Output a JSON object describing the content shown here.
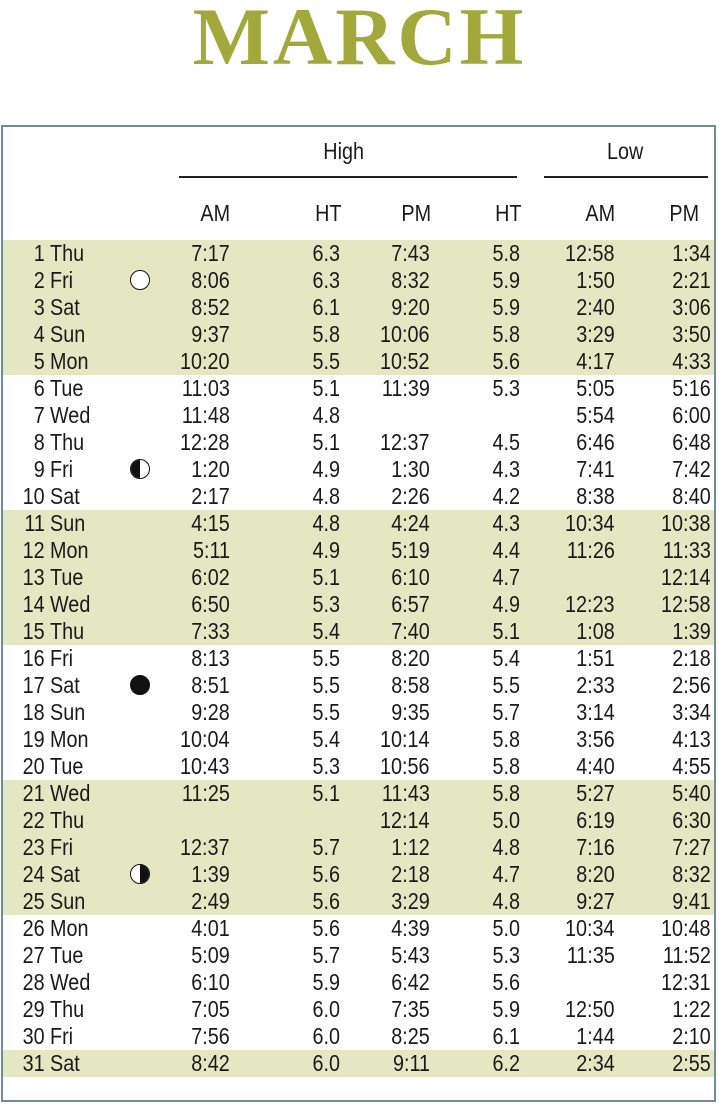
{
  "page": {
    "title": "MARCH",
    "accent_color": "#a2a93a",
    "shade_color": "#e5e6c2",
    "border_color": "#6f8d96"
  },
  "headers": {
    "high": "High",
    "low": "Low",
    "am": "AM",
    "ht": "HT",
    "pm": "PM"
  },
  "rows": [
    {
      "day": "1",
      "dow": "Thu",
      "moon": "",
      "high_am": "7:17",
      "ht_am": "6.3",
      "high_pm": "7:43",
      "ht_pm": "5.8",
      "low_am": "12:58",
      "low_pm": "1:34"
    },
    {
      "day": "2",
      "dow": "Fri",
      "moon": "full-moon",
      "high_am": "8:06",
      "ht_am": "6.3",
      "high_pm": "8:32",
      "ht_pm": "5.9",
      "low_am": "1:50",
      "low_pm": "2:21"
    },
    {
      "day": "3",
      "dow": "Sat",
      "moon": "",
      "high_am": "8:52",
      "ht_am": "6.1",
      "high_pm": "9:20",
      "ht_pm": "5.9",
      "low_am": "2:40",
      "low_pm": "3:06"
    },
    {
      "day": "4",
      "dow": "Sun",
      "moon": "",
      "high_am": "9:37",
      "ht_am": "5.8",
      "high_pm": "10:06",
      "ht_pm": "5.8",
      "low_am": "3:29",
      "low_pm": "3:50"
    },
    {
      "day": "5",
      "dow": "Mon",
      "moon": "",
      "high_am": "10:20",
      "ht_am": "5.5",
      "high_pm": "10:52",
      "ht_pm": "5.6",
      "low_am": "4:17",
      "low_pm": "4:33"
    },
    {
      "day": "6",
      "dow": "Tue",
      "moon": "",
      "high_am": "11:03",
      "ht_am": "5.1",
      "high_pm": "11:39",
      "ht_pm": "5.3",
      "low_am": "5:05",
      "low_pm": "5:16"
    },
    {
      "day": "7",
      "dow": "Wed",
      "moon": "",
      "high_am": "11:48",
      "ht_am": "4.8",
      "high_pm": "",
      "ht_pm": "",
      "low_am": "5:54",
      "low_pm": "6:00"
    },
    {
      "day": "8",
      "dow": "Thu",
      "moon": "",
      "high_am": "12:28",
      "ht_am": "5.1",
      "high_pm": "12:37",
      "ht_pm": "4.5",
      "low_am": "6:46",
      "low_pm": "6:48"
    },
    {
      "day": "9",
      "dow": "Fri",
      "moon": "last-quarter-moon",
      "high_am": "1:20",
      "ht_am": "4.9",
      "high_pm": "1:30",
      "ht_pm": "4.3",
      "low_am": "7:41",
      "low_pm": "7:42"
    },
    {
      "day": "10",
      "dow": "Sat",
      "moon": "",
      "high_am": "2:17",
      "ht_am": "4.8",
      "high_pm": "2:26",
      "ht_pm": "4.2",
      "low_am": "8:38",
      "low_pm": "8:40"
    },
    {
      "day": "11",
      "dow": "Sun",
      "moon": "",
      "high_am": "4:15",
      "ht_am": "4.8",
      "high_pm": "4:24",
      "ht_pm": "4.3",
      "low_am": "10:34",
      "low_pm": "10:38"
    },
    {
      "day": "12",
      "dow": "Mon",
      "moon": "",
      "high_am": "5:11",
      "ht_am": "4.9",
      "high_pm": "5:19",
      "ht_pm": "4.4",
      "low_am": "11:26",
      "low_pm": "11:33"
    },
    {
      "day": "13",
      "dow": "Tue",
      "moon": "",
      "high_am": "6:02",
      "ht_am": "5.1",
      "high_pm": "6:10",
      "ht_pm": "4.7",
      "low_am": "",
      "low_pm": "12:14"
    },
    {
      "day": "14",
      "dow": "Wed",
      "moon": "",
      "high_am": "6:50",
      "ht_am": "5.3",
      "high_pm": "6:57",
      "ht_pm": "4.9",
      "low_am": "12:23",
      "low_pm": "12:58"
    },
    {
      "day": "15",
      "dow": "Thu",
      "moon": "",
      "high_am": "7:33",
      "ht_am": "5.4",
      "high_pm": "7:40",
      "ht_pm": "5.1",
      "low_am": "1:08",
      "low_pm": "1:39"
    },
    {
      "day": "16",
      "dow": "Fri",
      "moon": "",
      "high_am": "8:13",
      "ht_am": "5.5",
      "high_pm": "8:20",
      "ht_pm": "5.4",
      "low_am": "1:51",
      "low_pm": "2:18"
    },
    {
      "day": "17",
      "dow": "Sat",
      "moon": "new-moon",
      "high_am": "8:51",
      "ht_am": "5.5",
      "high_pm": "8:58",
      "ht_pm": "5.5",
      "low_am": "2:33",
      "low_pm": "2:56"
    },
    {
      "day": "18",
      "dow": "Sun",
      "moon": "",
      "high_am": "9:28",
      "ht_am": "5.5",
      "high_pm": "9:35",
      "ht_pm": "5.7",
      "low_am": "3:14",
      "low_pm": "3:34"
    },
    {
      "day": "19",
      "dow": "Mon",
      "moon": "",
      "high_am": "10:04",
      "ht_am": "5.4",
      "high_pm": "10:14",
      "ht_pm": "5.8",
      "low_am": "3:56",
      "low_pm": "4:13"
    },
    {
      "day": "20",
      "dow": "Tue",
      "moon": "",
      "high_am": "10:43",
      "ht_am": "5.3",
      "high_pm": "10:56",
      "ht_pm": "5.8",
      "low_am": "4:40",
      "low_pm": "4:55"
    },
    {
      "day": "21",
      "dow": "Wed",
      "moon": "",
      "high_am": "11:25",
      "ht_am": "5.1",
      "high_pm": "11:43",
      "ht_pm": "5.8",
      "low_am": "5:27",
      "low_pm": "5:40"
    },
    {
      "day": "22",
      "dow": "Thu",
      "moon": "",
      "high_am": "",
      "ht_am": "",
      "high_pm": "12:14",
      "ht_pm": "5.0",
      "low_am": "6:19",
      "low_pm": "6:30"
    },
    {
      "day": "23",
      "dow": "Fri",
      "moon": "",
      "high_am": "12:37",
      "ht_am": "5.7",
      "high_pm": "1:12",
      "ht_pm": "4.8",
      "low_am": "7:16",
      "low_pm": "7:27"
    },
    {
      "day": "24",
      "dow": "Sat",
      "moon": "first-quarter-moon",
      "high_am": "1:39",
      "ht_am": "5.6",
      "high_pm": "2:18",
      "ht_pm": "4.7",
      "low_am": "8:20",
      "low_pm": "8:32"
    },
    {
      "day": "25",
      "dow": "Sun",
      "moon": "",
      "high_am": "2:49",
      "ht_am": "5.6",
      "high_pm": "3:29",
      "ht_pm": "4.8",
      "low_am": "9:27",
      "low_pm": "9:41"
    },
    {
      "day": "26",
      "dow": "Mon",
      "moon": "",
      "high_am": "4:01",
      "ht_am": "5.6",
      "high_pm": "4:39",
      "ht_pm": "5.0",
      "low_am": "10:34",
      "low_pm": "10:48"
    },
    {
      "day": "27",
      "dow": "Tue",
      "moon": "",
      "high_am": "5:09",
      "ht_am": "5.7",
      "high_pm": "5:43",
      "ht_pm": "5.3",
      "low_am": "11:35",
      "low_pm": "11:52"
    },
    {
      "day": "28",
      "dow": "Wed",
      "moon": "",
      "high_am": "6:10",
      "ht_am": "5.9",
      "high_pm": "6:42",
      "ht_pm": "5.6",
      "low_am": "",
      "low_pm": "12:31"
    },
    {
      "day": "29",
      "dow": "Thu",
      "moon": "",
      "high_am": "7:05",
      "ht_am": "6.0",
      "high_pm": "7:35",
      "ht_pm": "5.9",
      "low_am": "12:50",
      "low_pm": "1:22"
    },
    {
      "day": "30",
      "dow": "Fri",
      "moon": "",
      "high_am": "7:56",
      "ht_am": "6.0",
      "high_pm": "8:25",
      "ht_pm": "6.1",
      "low_am": "1:44",
      "low_pm": "2:10"
    },
    {
      "day": "31",
      "dow": "Sat",
      "moon": "",
      "high_am": "8:42",
      "ht_am": "6.0",
      "high_pm": "9:11",
      "ht_pm": "6.2",
      "low_am": "2:34",
      "low_pm": "2:55"
    }
  ]
}
